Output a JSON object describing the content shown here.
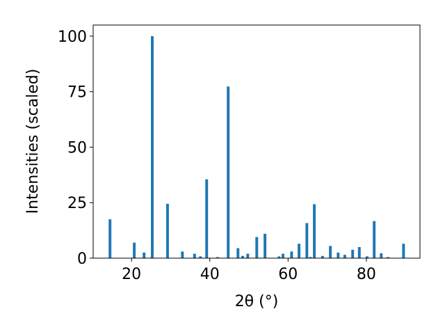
{
  "chart_data": {
    "type": "bar",
    "x_label": "2θ (°)",
    "y_label": "Intensities (scaled)",
    "x": [
      14.5,
      20.7,
      23.2,
      25.3,
      29.2,
      33.0,
      36.1,
      37.6,
      39.2,
      42.0,
      44.7,
      47.2,
      48.4,
      49.7,
      52.0,
      54.1,
      57.7,
      58.7,
      60.9,
      62.8,
      64.8,
      65.7,
      66.7,
      68.8,
      70.8,
      72.8,
      74.5,
      76.5,
      78.2,
      80.2,
      82.0,
      83.8,
      85.5,
      89.5
    ],
    "values": [
      17.5,
      7,
      2.5,
      100,
      24.5,
      3,
      2,
      0.8,
      35.5,
      0.5,
      77.3,
      4.5,
      1,
      2,
      9.5,
      11,
      0.8,
      2,
      3,
      6.5,
      15.8,
      0.5,
      24.3,
      1,
      5.5,
      2.5,
      1.5,
      3.8,
      5,
      0.8,
      16.7,
      2.2,
      0.5,
      6.5
    ],
    "color": "#1f77b4",
    "xlim": [
      10.2,
      93.7
    ],
    "xticks": [
      20,
      40,
      60,
      80
    ],
    "ylim": [
      0,
      105
    ],
    "yticks": [
      0,
      25,
      50,
      75,
      100
    ]
  }
}
